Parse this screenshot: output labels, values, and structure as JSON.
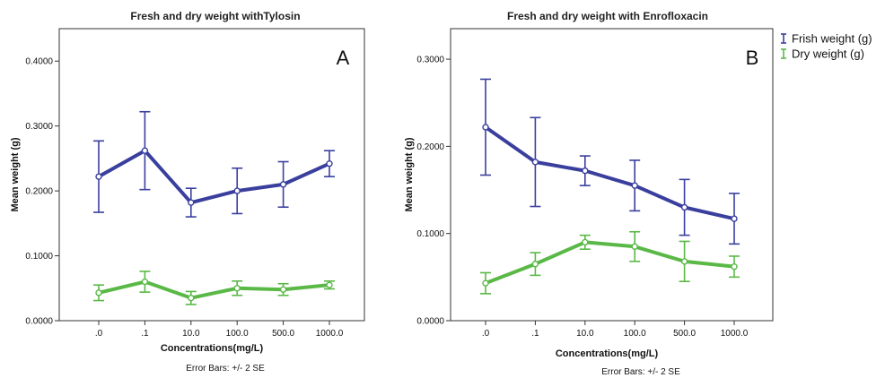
{
  "chart_data": [
    {
      "type": "line",
      "title": "Fresh and dry weight withTylosin",
      "panel_label": "A",
      "xlabel": "Concentrations(mg/L)",
      "ylabel": "Mean weight (g)",
      "categories": [
        ".0",
        ".1",
        "10.0",
        "100.0",
        "500.0",
        "1000.0"
      ],
      "ylim": [
        0,
        0.45
      ],
      "yticks": [
        "0.0000",
        "0.1000",
        "0.2000",
        "0.3000",
        "0.4000"
      ],
      "ytick_values": [
        0,
        0.1,
        0.2,
        0.3,
        0.4
      ],
      "grid": false,
      "note": "Error Bars: +/- 2 SE",
      "series": [
        {
          "name": "Frish weight (g)",
          "color": "#3a3f9e",
          "values": [
            0.222,
            0.262,
            0.182,
            0.2,
            0.21,
            0.242
          ],
          "error": [
            0.055,
            0.06,
            0.022,
            0.035,
            0.035,
            0.02
          ]
        },
        {
          "name": "Dry weight (g)",
          "color": "#5ab946",
          "values": [
            0.043,
            0.06,
            0.035,
            0.05,
            0.048,
            0.055
          ],
          "error": [
            0.012,
            0.016,
            0.01,
            0.011,
            0.009,
            0.006
          ]
        }
      ]
    },
    {
      "type": "line",
      "title": "Fresh and dry weight with Enrofloxacin",
      "panel_label": "B",
      "xlabel": "Concentrations(mg/L)",
      "ylabel": "Mean weight (g)",
      "categories": [
        ".0",
        ".1",
        "10.0",
        "100.0",
        "500.0",
        "1000.0"
      ],
      "ylim": [
        0,
        0.335
      ],
      "yticks": [
        "0.0000",
        "0.1000",
        "0.2000",
        "0.3000"
      ],
      "ytick_values": [
        0,
        0.1,
        0.2,
        0.3
      ],
      "grid": false,
      "note": "Error Bars: +/- 2 SE",
      "legend_position": "top-right (outside)",
      "series": [
        {
          "name": "Frish weight (g)",
          "color": "#3a3f9e",
          "values": [
            0.222,
            0.182,
            0.172,
            0.155,
            0.13,
            0.117
          ],
          "error": [
            0.055,
            0.051,
            0.017,
            0.029,
            0.032,
            0.029
          ]
        },
        {
          "name": "Dry weight (g)",
          "color": "#5ab946",
          "values": [
            0.043,
            0.065,
            0.09,
            0.085,
            0.068,
            0.062
          ],
          "error": [
            0.012,
            0.013,
            0.008,
            0.017,
            0.023,
            0.012
          ]
        }
      ]
    }
  ],
  "legend": {
    "items": [
      {
        "label": "Frish weight (g)",
        "color": "#3a3f9e"
      },
      {
        "label": "Dry weight (g)",
        "color": "#5ab946"
      }
    ]
  }
}
